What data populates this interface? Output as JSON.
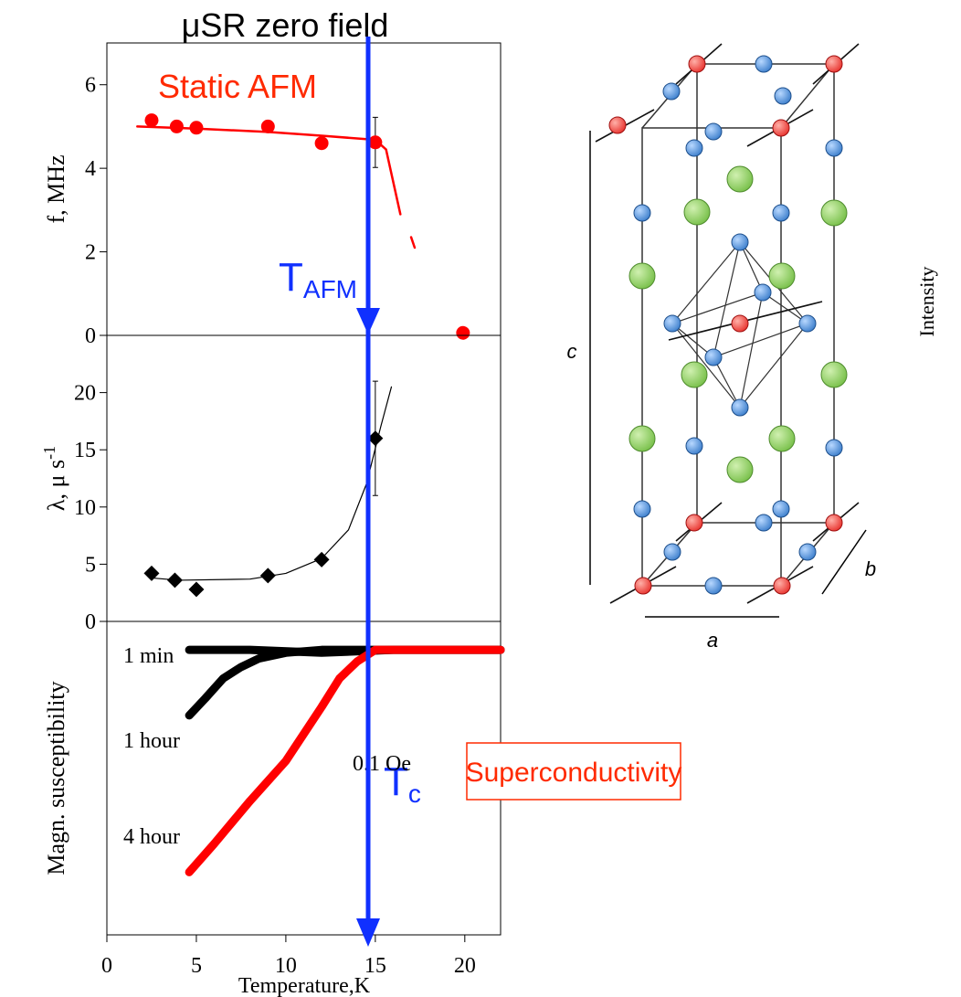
{
  "header": {
    "title": "μSR zero field",
    "side_label": "Intensity"
  },
  "chart_data": [
    {
      "type": "scatter",
      "ylabel": "f, MHz",
      "color": "#ff0000",
      "marker": "circle",
      "annotation": "Static AFM",
      "t_label": "T",
      "t_sub": "AFM",
      "xlim": [
        0,
        22
      ],
      "ylim": [
        0,
        7
      ],
      "yticks": [
        0,
        2,
        4,
        6
      ],
      "points": {
        "x": [
          2.5,
          3.9,
          5,
          9,
          12,
          15,
          19.9
        ],
        "values": [
          5.15,
          5.0,
          4.97,
          5.0,
          4.6,
          4.62,
          0.06
        ],
        "errors": [
          null,
          null,
          null,
          null,
          null,
          0.6,
          null
        ]
      },
      "fit": {
        "x": [
          1.7,
          5,
          9,
          12,
          15,
          15.6,
          16.4,
          16.7,
          17.0,
          17.2
        ],
        "values": [
          5.0,
          4.95,
          4.87,
          4.78,
          4.68,
          4.45,
          2.9,
          null,
          2.35,
          2.1
        ]
      }
    },
    {
      "type": "scatter",
      "ylabel": "λ, μ s",
      "ylabel_sup": "-1",
      "color": "#000000",
      "marker": "diamond",
      "xlim": [
        0,
        22
      ],
      "ylim": [
        0,
        25
      ],
      "yticks": [
        0,
        5,
        10,
        15,
        20
      ],
      "points": {
        "x": [
          2.5,
          3.8,
          5,
          9,
          12,
          15
        ],
        "values": [
          4.2,
          3.6,
          2.8,
          4.0,
          5.4,
          16
        ],
        "errors": [
          null,
          null,
          null,
          null,
          null,
          5
        ]
      },
      "fit": {
        "x": [
          2.5,
          4,
          8,
          10,
          12,
          13.5,
          14.5,
          15.3,
          15.9
        ],
        "values": [
          3.8,
          3.6,
          3.7,
          4.2,
          5.5,
          8,
          12,
          17,
          20.5
        ]
      }
    },
    {
      "type": "line",
      "ylabel": "Magn. susceptibility",
      "xlabel": "Temperature,K",
      "field": "0.1 Oe",
      "box_label": "Superconductivity",
      "t_label": "T",
      "t_sub": "c",
      "xlim": [
        0,
        22
      ],
      "ylim": [
        -1,
        0.1
      ],
      "xticks": [
        0,
        5,
        10,
        15,
        20
      ],
      "series": [
        {
          "name": "1 min",
          "color": "#000000",
          "x": [
            4.6,
            8,
            12,
            16,
            22
          ],
          "values": [
            0.0,
            0.0,
            -0.01,
            0.0,
            0.0
          ]
        },
        {
          "name": "1 hour",
          "color": "#000000",
          "x": [
            4.6,
            5.5,
            6.5,
            7.5,
            8.5,
            10,
            12,
            22
          ],
          "values": [
            -0.23,
            -0.17,
            -0.1,
            -0.06,
            -0.03,
            -0.01,
            0.0,
            0.0
          ]
        },
        {
          "name": "4 hour",
          "color": "#ff0000",
          "x": [
            4.6,
            6,
            8,
            10,
            12,
            13,
            14,
            15,
            22
          ],
          "values": [
            -0.78,
            -0.68,
            -0.53,
            -0.39,
            -0.2,
            -0.1,
            -0.04,
            0.0,
            0.0
          ]
        }
      ]
    }
  ],
  "diagram": {
    "labels": [
      "c",
      "b",
      "a"
    ]
  }
}
